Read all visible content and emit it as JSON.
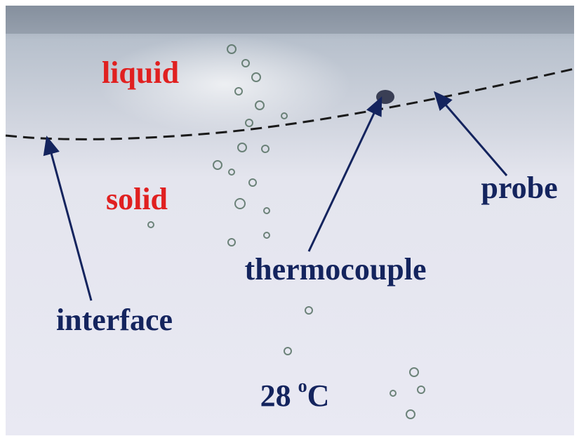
{
  "labels": {
    "liquid": "liquid",
    "solid": "solid",
    "probe": "probe",
    "thermocouple": "thermocouple",
    "interface": "interface"
  },
  "temperature": {
    "number": "28",
    "degree": "o",
    "unit": "C"
  }
}
